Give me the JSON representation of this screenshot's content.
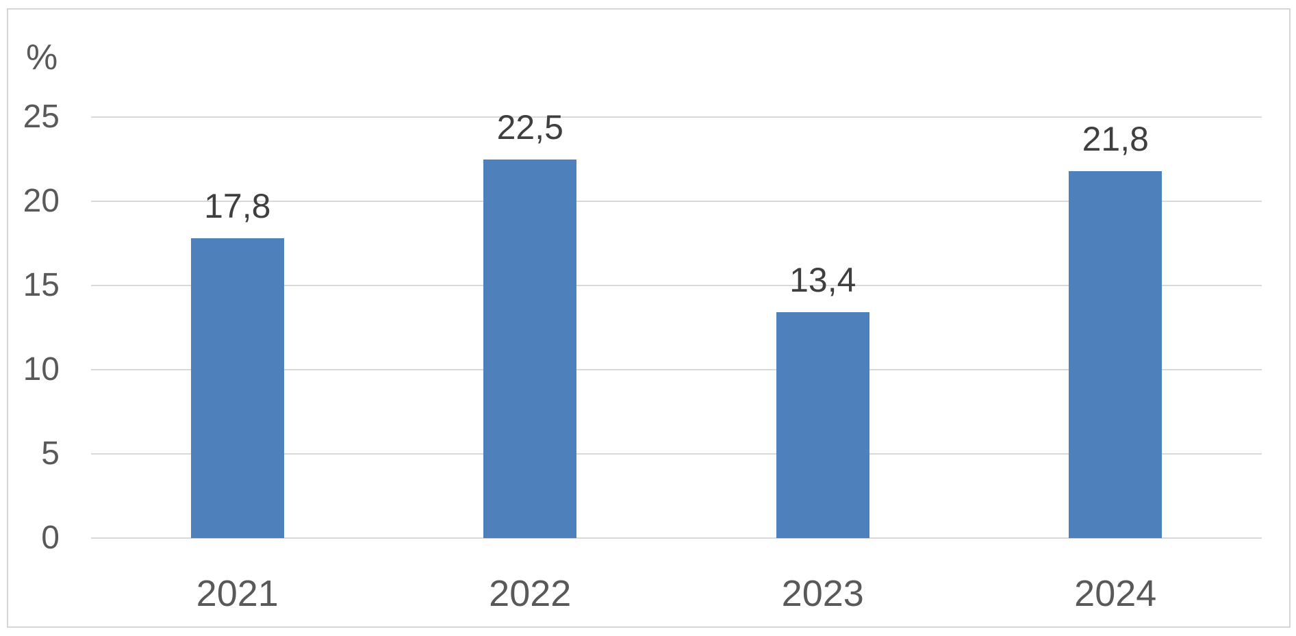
{
  "chart_data": {
    "type": "bar",
    "ylabel": "%",
    "categories": [
      "2021",
      "2022",
      "2023",
      "2024"
    ],
    "values": [
      17.8,
      22.5,
      13.4,
      21.8
    ],
    "value_labels": [
      "17,8",
      "22,5",
      "13,4",
      "21,8"
    ],
    "yticks": [
      0,
      5,
      10,
      15,
      20,
      25
    ],
    "ytick_labels": [
      "0",
      "5",
      "10",
      "15",
      "20",
      "25"
    ],
    "ylim": [
      0,
      25
    ],
    "grid": true,
    "legend": false,
    "colors": {
      "bar": "#4E80BC",
      "gridline": "#D9D9D9",
      "frame_border": "#D6D6D6",
      "axis_text": "#595959",
      "data_label_text": "#3F3F3F",
      "background": "#FFFFFF"
    }
  }
}
